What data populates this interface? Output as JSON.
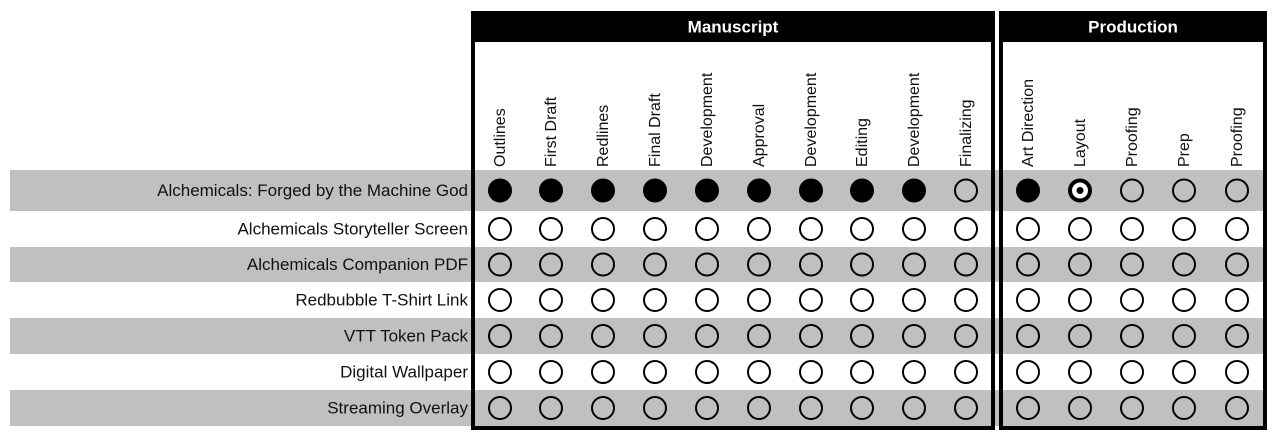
{
  "groups": [
    {
      "title": "Manuscript",
      "columns": [
        "Outlines",
        "First Draft",
        "Redlines",
        "Final Draft",
        "Development",
        "Approval",
        "Development",
        "Editing",
        "Development",
        "Finalizing"
      ]
    },
    {
      "title": "Production",
      "columns": [
        "Art Direction",
        "Layout",
        "Proofing",
        "Prep",
        "Proofing"
      ]
    }
  ],
  "rows": [
    {
      "label": "Alchemicals: Forged by the Machine God",
      "status": [
        [
          1,
          1,
          1,
          1,
          1,
          1,
          1,
          1,
          1,
          0
        ],
        [
          1,
          0.5,
          0,
          0,
          0
        ]
      ]
    },
    {
      "label": "Alchemicals Storyteller Screen",
      "status": [
        [
          0,
          0,
          0,
          0,
          0,
          0,
          0,
          0,
          0,
          0
        ],
        [
          0,
          0,
          0,
          0,
          0
        ]
      ]
    },
    {
      "label": "Alchemicals Companion PDF",
      "status": [
        [
          0,
          0,
          0,
          0,
          0,
          0,
          0,
          0,
          0,
          0
        ],
        [
          0,
          0,
          0,
          0,
          0
        ]
      ]
    },
    {
      "label": "Redbubble T-Shirt Link",
      "status": [
        [
          0,
          0,
          0,
          0,
          0,
          0,
          0,
          0,
          0,
          0
        ],
        [
          0,
          0,
          0,
          0,
          0
        ]
      ]
    },
    {
      "label": "VTT Token Pack",
      "status": [
        [
          0,
          0,
          0,
          0,
          0,
          0,
          0,
          0,
          0,
          0
        ],
        [
          0,
          0,
          0,
          0,
          0
        ]
      ]
    },
    {
      "label": "Digital Wallpaper",
      "status": [
        [
          0,
          0,
          0,
          0,
          0,
          0,
          0,
          0,
          0,
          0
        ],
        [
          0,
          0,
          0,
          0,
          0
        ]
      ]
    },
    {
      "label": "Streaming Overlay",
      "status": [
        [
          0,
          0,
          0,
          0,
          0,
          0,
          0,
          0,
          0,
          0
        ],
        [
          0,
          0,
          0,
          0,
          0
        ]
      ]
    }
  ]
}
